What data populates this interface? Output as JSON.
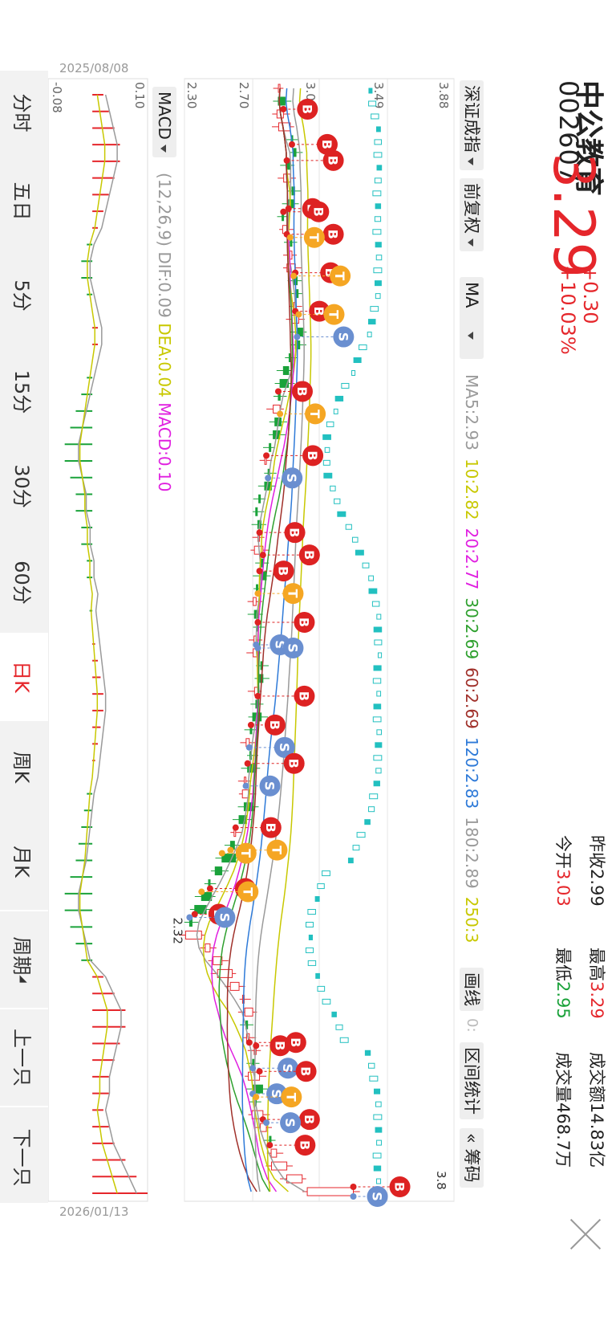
{
  "stock": {
    "name": "中公教育",
    "code": "002607",
    "price": "3.29",
    "change": "+0.30",
    "change_pct": "+10.03%",
    "prev_close_label": "昨收",
    "prev_close": "2.99",
    "high_label": "最高",
    "high": "3.29",
    "turnover_label": "成交额",
    "turnover": "14.83亿",
    "open_label": "今开",
    "open": "3.03",
    "low_label": "最低",
    "low": "2.95",
    "volume_label": "成交量",
    "volume": "468.7万"
  },
  "toolbar": {
    "index": "深证成指",
    "adjust": "前复权",
    "indicator": "MA",
    "draw_line": "画线",
    "draw_extra": "0:",
    "range_stats": "区间统计",
    "chips": "筹码",
    "chips_prefix": "«"
  },
  "ma_legend": [
    {
      "text": "MA5:2.93",
      "color": "#9a9a9a"
    },
    {
      "text": "10:2.82",
      "color": "#c8c800"
    },
    {
      "text": "20:2.77",
      "color": "#e020e0"
    },
    {
      "text": "30:2.69",
      "color": "#2ea02e"
    },
    {
      "text": "60:2.69",
      "color": "#a0302a"
    },
    {
      "text": "120:2.83",
      "color": "#2e7ad8"
    },
    {
      "text": "180:2.89",
      "color": "#9a9a9a"
    },
    {
      "text": "250:3",
      "color": "#c8c800"
    }
  ],
  "macd": {
    "label": "MACD",
    "params": "(12,26,9)",
    "dif": "DIF:0.09",
    "dea": "DEA:0.04",
    "macd": "MACD:0.10",
    "colors": {
      "dif": "#9a9a9a",
      "dea": "#c8c800",
      "macd": "#e020e0"
    }
  },
  "axis": {
    "price_ticks": [
      "3.88",
      "3.49",
      "3.09",
      "2.70",
      "2.30"
    ],
    "macd_ticks": [
      "0.10",
      "-0.08"
    ],
    "start_date": "2025/08/08",
    "end_date": "2026/01/13",
    "low_marker": "2.32",
    "high_marker": "3.8"
  },
  "tabs": [
    "分时",
    "五日",
    "5分",
    "15分",
    "30分",
    "60分",
    "日K",
    "周K",
    "月K",
    "周期",
    "上一只",
    "下一只"
  ],
  "active_tab": "日K",
  "colors": {
    "up": "#e5262b",
    "down": "#1aa23a",
    "compare": "#22c0c0",
    "buy": "#dd2222",
    "sell": "#6a8fd0",
    "t": "#f5a623"
  },
  "chart_data": {
    "type": "candlestick",
    "ylim": [
      2.3,
      3.88
    ],
    "series": [
      {
        "name": "MA5",
        "value": 2.93
      },
      {
        "name": "10",
        "value": 2.82
      },
      {
        "name": "20",
        "value": 2.77
      },
      {
        "name": "30",
        "value": 2.69
      },
      {
        "name": "60",
        "value": 2.69
      },
      {
        "name": "120",
        "value": 2.83
      },
      {
        "name": "180",
        "value": 2.89
      }
    ],
    "close_trend": [
      2.86,
      2.85,
      2.88,
      2.92,
      2.93,
      2.94,
      2.9,
      2.92,
      2.93,
      2.91,
      2.88,
      2.9,
      2.92,
      2.93,
      2.95,
      2.94,
      2.96,
      2.95,
      2.97,
      2.96,
      2.95,
      2.92,
      2.88,
      2.86,
      2.85,
      2.86,
      2.83,
      2.82,
      2.8,
      2.78,
      2.79,
      2.77,
      2.74,
      2.72,
      2.73,
      2.74,
      2.76,
      2.75,
      2.74,
      2.73,
      2.72,
      2.71,
      2.73,
      2.72,
      2.73,
      2.75,
      2.74,
      2.73,
      2.72,
      2.7,
      2.69,
      2.68,
      2.69,
      2.67,
      2.66,
      2.68,
      2.65,
      2.62,
      2.6,
      2.57,
      2.52,
      2.48,
      2.45,
      2.4,
      2.36,
      2.33,
      2.4,
      2.45,
      2.52,
      2.58,
      2.62,
      2.65,
      2.7,
      2.66,
      2.68,
      2.72,
      2.7,
      2.74,
      2.7,
      2.72,
      2.76,
      2.78,
      2.8,
      2.84,
      2.9,
      2.99,
      3.29
    ],
    "macd_hist": [
      0.02,
      0.03,
      0.04,
      0.05,
      0.05,
      0.04,
      0.03,
      0.02,
      0.01,
      -0.01,
      -0.02,
      -0.02,
      -0.01,
      0.0,
      0.01,
      0.01,
      0.0,
      -0.01,
      -0.02,
      -0.03,
      -0.04,
      -0.05,
      -0.05,
      -0.04,
      -0.03,
      -0.03,
      -0.02,
      -0.02,
      -0.01,
      -0.01,
      0.0,
      -0.005,
      0.0,
      0.005,
      0.01,
      0.015,
      0.02,
      0.02,
      0.015,
      0.01,
      0.005,
      0.0,
      -0.01,
      -0.015,
      -0.02,
      -0.025,
      -0.03,
      -0.04,
      -0.05,
      -0.05,
      -0.04,
      -0.03,
      -0.02,
      0.02,
      0.04,
      0.06,
      0.06,
      0.05,
      0.04,
      0.03,
      0.03,
      0.02,
      0.03,
      0.04,
      0.06,
      0.08,
      0.1
    ]
  }
}
